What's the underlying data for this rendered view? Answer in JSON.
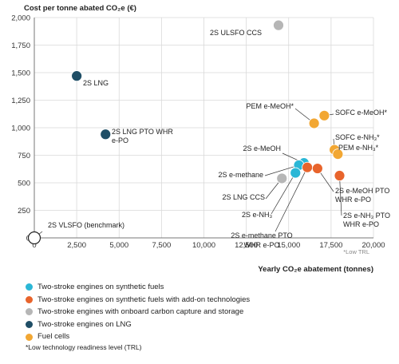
{
  "chart_data": {
    "type": "scatter",
    "ylabel": "Cost per tonne abated CO₂e (€)",
    "xlabel": "Yearly CO₂e abatement (tonnes)",
    "xlim": [
      0,
      20000
    ],
    "ylim": [
      0,
      2000
    ],
    "xticks": [
      "0",
      "2,500",
      "5,000",
      "7,500",
      "10,000",
      "12,500",
      "15,000",
      "17,500",
      "20,000"
    ],
    "yticks": [
      "0",
      "250",
      "500",
      "750",
      "1,000",
      "1,250",
      "1,500",
      "1,750",
      "2,000"
    ],
    "grid": true,
    "note": "*Low TRL",
    "colors": {
      "synthetic": "#2bb7d6",
      "addon": "#e8642c",
      "carbon_capture": "#b6b6b6",
      "lng": "#1f4e66",
      "fuel_cells": "#f2a733"
    },
    "points": [
      {
        "label": "2S VLSFO (benchmark)",
        "x": 0,
        "y": 0,
        "group": "benchmark"
      },
      {
        "label": "2S LNG",
        "x": 2500,
        "y": 1470,
        "group": "lng"
      },
      {
        "label": "2S LNG PTO WHR e-PO",
        "x": 4200,
        "y": 940,
        "group": "lng"
      },
      {
        "label": "2S ULSFO CCS",
        "x": 14400,
        "y": 1930,
        "group": "carbon_capture"
      },
      {
        "label": "2S LNG CCS",
        "x": 14600,
        "y": 540,
        "group": "carbon_capture"
      },
      {
        "label": "2S e-MeOH",
        "x": 15900,
        "y": 680,
        "group": "synthetic"
      },
      {
        "label": "2S e-methane",
        "x": 15600,
        "y": 660,
        "group": "synthetic"
      },
      {
        "label": "2S e-NH₃",
        "x": 15400,
        "y": 590,
        "group": "synthetic"
      },
      {
        "label": "2S e-methane PTO WHR e-PO",
        "x": 16100,
        "y": 640,
        "group": "addon"
      },
      {
        "label": "2S e-MeOH PTO WHR e-PO",
        "x": 16700,
        "y": 630,
        "group": "addon"
      },
      {
        "label": "2S e-NH₃ PTO WHR e-PO",
        "x": 18000,
        "y": 565,
        "group": "addon"
      },
      {
        "label": "PEM e-MeOH*",
        "x": 16500,
        "y": 1040,
        "group": "fuel_cells"
      },
      {
        "label": "SOFC e-MeOH*",
        "x": 17100,
        "y": 1110,
        "group": "fuel_cells"
      },
      {
        "label": "SOFC e-NH₃*",
        "x": 17700,
        "y": 800,
        "group": "fuel_cells"
      },
      {
        "label": "PEM e-NH₃*",
        "x": 17900,
        "y": 760,
        "group": "fuel_cells"
      }
    ]
  },
  "legend": [
    {
      "label": "Two-stroke engines on synthetic fuels",
      "color": "#2bb7d6"
    },
    {
      "label": "Two-stroke engines on synthetic fuels with add-on technologies",
      "color": "#e8642c"
    },
    {
      "label": "Two-stroke engines with onboard carbon capture and storage",
      "color": "#b6b6b6"
    },
    {
      "label": "Two-stroke engines on LNG",
      "color": "#1f4e66"
    },
    {
      "label": "Fuel cells",
      "color": "#f2a733"
    }
  ],
  "footnote": "*Low technology readiness level (TRL)"
}
